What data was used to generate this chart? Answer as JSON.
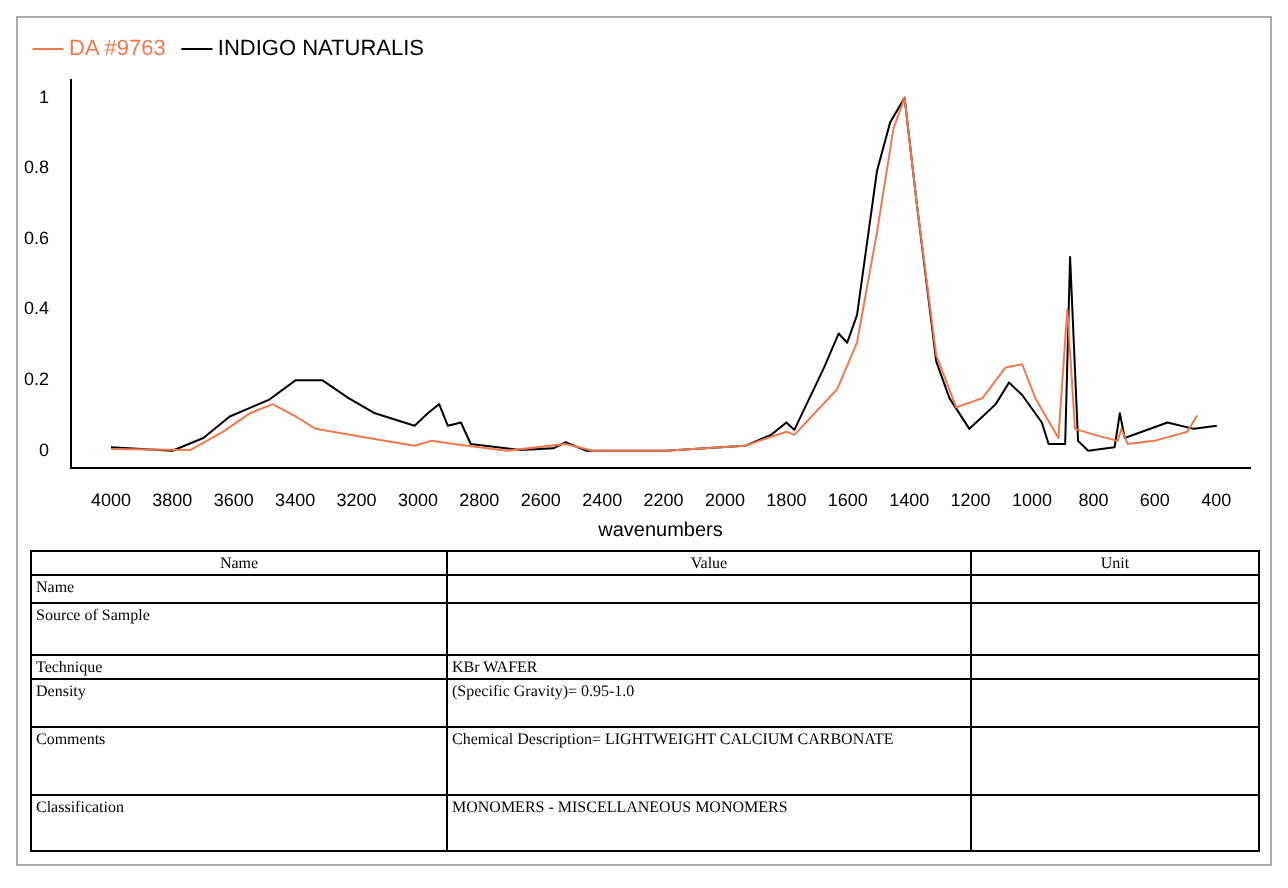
{
  "chart_data": {
    "type": "line",
    "xlabel": "wavenumbers",
    "x": [
      4000,
      3742,
      3634,
      3548,
      3473,
      3398,
      3333,
      3161,
      3011,
      2957,
      2860,
      2710,
      2520,
      2430,
      2323,
      2194,
      1935,
      1800,
      1774,
      1634,
      1570,
      1505,
      1451,
      1415,
      1376,
      1312,
      1247,
      1161,
      1086,
      1032,
      989,
      914,
      885,
      860,
      796,
      721,
      709,
      688,
      602,
      494,
      462
    ],
    "series": [
      {
        "name": "DA #9763",
        "color": "#f07850",
        "values": [
          0.005,
          0.002,
          0.054,
          0.106,
          0.132,
          0.097,
          0.062,
          0.036,
          0.014,
          0.028,
          0.016,
          0.0,
          0.019,
          0.0,
          0.0,
          0.0,
          0.014,
          0.054,
          0.045,
          0.175,
          0.306,
          0.618,
          0.913,
          1.0,
          0.705,
          0.271,
          0.123,
          0.149,
          0.236,
          0.245,
          0.149,
          0.036,
          0.401,
          0.062,
          0.045,
          0.028,
          0.062,
          0.019,
          0.028,
          0.054,
          0.1
        ]
      },
      {
        "name": "INDIGO NATURALIS",
        "color": "#000000",
        "x": [
          4000,
          3800,
          3699,
          3613,
          3484,
          3398,
          3312,
          3226,
          3140,
          3011,
          2968,
          2931,
          2903,
          2860,
          2828,
          2667,
          2559,
          2520,
          2451,
          2323,
          2194,
          1935,
          1850,
          1800,
          1774,
          1677,
          1630,
          1602,
          1570,
          1505,
          1462,
          1415,
          1376,
          1312,
          1269,
          1204,
          1161,
          1118,
          1075,
          1032,
          968,
          946,
          892,
          876,
          850,
          817,
          731,
          714,
          698,
          559,
          473,
          398
        ],
        "values": [
          0.01,
          0.0,
          0.036,
          0.097,
          0.145,
          0.2,
          0.2,
          0.149,
          0.106,
          0.071,
          0.106,
          0.132,
          0.071,
          0.08,
          0.019,
          0.002,
          0.007,
          0.024,
          0.0,
          0.0,
          0.0,
          0.014,
          0.045,
          0.08,
          0.059,
          0.236,
          0.332,
          0.306,
          0.384,
          0.792,
          0.93,
          1.0,
          0.705,
          0.253,
          0.149,
          0.062,
          0.097,
          0.132,
          0.193,
          0.158,
          0.08,
          0.019,
          0.019,
          0.549,
          0.028,
          0.0,
          0.01,
          0.106,
          0.036,
          0.08,
          0.062,
          0.071
        ]
      }
    ],
    "xlim": [
      4130,
      290
    ],
    "xticks": [
      4000,
      3800,
      3600,
      3400,
      3200,
      3000,
      2800,
      2600,
      2400,
      2200,
      2000,
      1800,
      1600,
      1400,
      1200,
      1000,
      800,
      600,
      400
    ],
    "ylim": [
      -0.05,
      1.05
    ],
    "yticks": [
      0,
      0.2,
      0.4,
      0.6,
      0.8,
      1
    ],
    "grid": false,
    "legend": "top left",
    "marker": "none",
    "line_style": "solid",
    "annotations": [
      "Name",
      "Value",
      "Unit",
      "Name",
      "Source of Sample",
      "Technique",
      "KBr WAFER",
      "Density",
      "(Specific Gravity)= 0.95-1.0",
      "Comments",
      "Chemical Description= LIGHTWEIGHT CALCIUM CARBONATE",
      "Classification",
      "MONOMERS - MISCELLANEOUS MONOMERS"
    ]
  }
}
